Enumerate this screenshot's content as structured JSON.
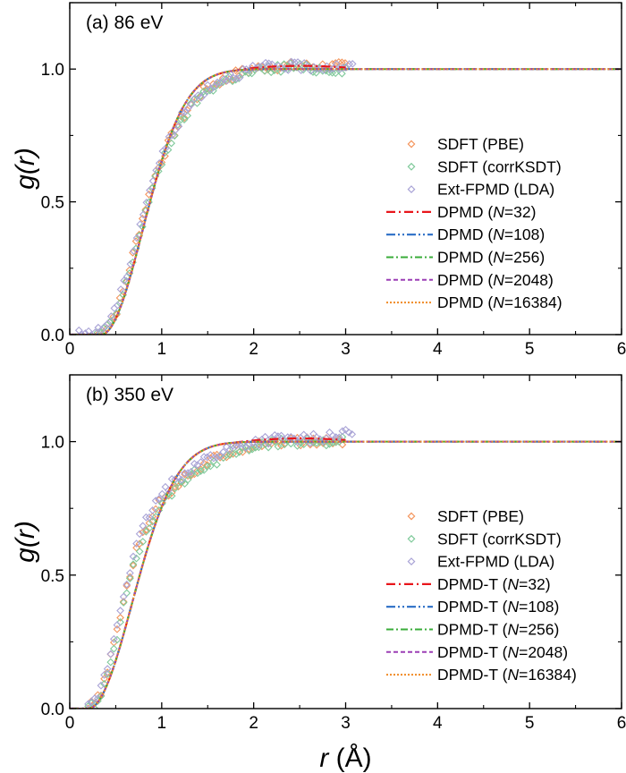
{
  "chart_data": [
    {
      "type": "line",
      "panel_label": "(a) 86 eV",
      "xlabel_base": "r",
      "xlabel_unit": "(Å)",
      "ylabel_func": "g(",
      "ylabel_var": "r",
      "ylabel_close": ")",
      "xlim": [
        0,
        6
      ],
      "ylim": [
        0,
        1.25
      ],
      "xticks": [
        0,
        1,
        2,
        3,
        4,
        5,
        6
      ],
      "yticks": [
        0.0,
        0.5,
        1.0
      ],
      "ytick_labels": [
        "0.0",
        "0.5",
        "1.0"
      ],
      "show_xlabel": false,
      "legend_position": "right",
      "onset_r": 0.34,
      "rise_width": 0.95,
      "scatter_series": [
        {
          "name": "SDFT (PBE)",
          "color": "#f4955c",
          "marker": "diamond",
          "x_max": 3.0,
          "points": [
            [
              0.3,
              0.0
            ],
            [
              0.4,
              0.03
            ],
            [
              0.5,
              0.08
            ],
            [
              0.6,
              0.18
            ],
            [
              0.7,
              0.32
            ],
            [
              0.8,
              0.45
            ],
            [
              0.9,
              0.57
            ],
            [
              1.0,
              0.66
            ],
            [
              1.1,
              0.74
            ],
            [
              1.2,
              0.8
            ],
            [
              1.3,
              0.86
            ],
            [
              1.4,
              0.9
            ],
            [
              1.5,
              0.93
            ],
            [
              1.6,
              0.95
            ],
            [
              1.7,
              0.96
            ],
            [
              1.8,
              0.98
            ],
            [
              1.9,
              0.99
            ],
            [
              2.0,
              1.0
            ],
            [
              2.2,
              1.01
            ],
            [
              2.4,
              1.01
            ],
            [
              2.6,
              1.01
            ],
            [
              2.8,
              1.01
            ],
            [
              3.0,
              1.01
            ]
          ]
        },
        {
          "name": "SDFT (corrKSDT)",
          "color": "#7fc99a",
          "marker": "diamond",
          "x_max": 3.0,
          "points": [
            [
              0.3,
              0.0
            ],
            [
              0.4,
              0.02
            ],
            [
              0.5,
              0.07
            ],
            [
              0.6,
              0.17
            ],
            [
              0.7,
              0.3
            ],
            [
              0.8,
              0.43
            ],
            [
              0.9,
              0.55
            ],
            [
              1.0,
              0.65
            ],
            [
              1.1,
              0.73
            ],
            [
              1.2,
              0.79
            ],
            [
              1.3,
              0.85
            ],
            [
              1.4,
              0.89
            ],
            [
              1.5,
              0.92
            ],
            [
              1.6,
              0.94
            ],
            [
              1.7,
              0.96
            ],
            [
              1.8,
              0.97
            ],
            [
              1.9,
              0.98
            ],
            [
              2.0,
              0.99
            ],
            [
              2.2,
              1.0
            ],
            [
              2.4,
              1.01
            ],
            [
              2.6,
              1.0
            ],
            [
              2.8,
              1.0
            ],
            [
              3.0,
              1.0
            ]
          ]
        },
        {
          "name": "Ext-FPMD (LDA)",
          "color": "#a9a3d6",
          "marker": "diamond",
          "x_max": 3.1,
          "points": [
            [
              0.1,
              0.0
            ],
            [
              0.2,
              0.01
            ],
            [
              0.3,
              0.01
            ],
            [
              0.4,
              0.04
            ],
            [
              0.5,
              0.1
            ],
            [
              0.6,
              0.2
            ],
            [
              0.7,
              0.33
            ],
            [
              0.8,
              0.46
            ],
            [
              0.9,
              0.58
            ],
            [
              1.0,
              0.67
            ],
            [
              1.1,
              0.75
            ],
            [
              1.2,
              0.81
            ],
            [
              1.3,
              0.86
            ],
            [
              1.4,
              0.9
            ],
            [
              1.5,
              0.93
            ],
            [
              1.6,
              0.95
            ],
            [
              1.7,
              0.97
            ],
            [
              1.8,
              0.98
            ],
            [
              1.9,
              0.99
            ],
            [
              2.0,
              1.0
            ],
            [
              2.2,
              1.01
            ],
            [
              2.4,
              1.01
            ],
            [
              2.6,
              1.01
            ],
            [
              2.8,
              1.01
            ],
            [
              3.0,
              1.01
            ]
          ]
        }
      ],
      "line_series": [
        {
          "name_prefix": "DPMD",
          "n": "32",
          "color": "#e8151b",
          "dash": "10,4,2,4",
          "width": 2.2,
          "x_max": 3.0
        },
        {
          "name_prefix": "DPMD",
          "n": "108",
          "color": "#2a6ec6",
          "dash": "10,3,2,3,2,3",
          "width": 2.2,
          "x_max": 6.0
        },
        {
          "name_prefix": "DPMD",
          "n": "256",
          "color": "#3aac3a",
          "dash": "8,3,2,3",
          "width": 2.0,
          "x_max": 6.0
        },
        {
          "name_prefix": "DPMD",
          "n": "2048",
          "color": "#9b3fb5",
          "dash": "5,3",
          "width": 2.0,
          "x_max": 6.0
        },
        {
          "name_prefix": "DPMD",
          "n": "16384",
          "color": "#f08a24",
          "dash": "2,2",
          "width": 2.0,
          "x_max": 6.0
        }
      ]
    },
    {
      "type": "line",
      "panel_label": "(b) 350 eV",
      "xlabel_base": "r",
      "xlabel_unit": "(Å)",
      "ylabel_func": "g(",
      "ylabel_var": "r",
      "ylabel_close": ")",
      "xlim": [
        0,
        6
      ],
      "ylim": [
        0,
        1.25
      ],
      "xticks": [
        0,
        1,
        2,
        3,
        4,
        5,
        6
      ],
      "yticks": [
        0.0,
        0.5,
        1.0
      ],
      "ytick_labels": [
        "0.0",
        "0.5",
        "1.0"
      ],
      "show_xlabel": true,
      "legend_position": "right",
      "onset_r": 0.2,
      "rise_width": 1.0,
      "scatter_series": [
        {
          "name": "SDFT (PBE)",
          "color": "#f4955c",
          "marker": "diamond",
          "x_max": 3.0,
          "points": [
            [
              0.2,
              0.0
            ],
            [
              0.3,
              0.03
            ],
            [
              0.4,
              0.12
            ],
            [
              0.5,
              0.27
            ],
            [
              0.6,
              0.43
            ],
            [
              0.7,
              0.56
            ],
            [
              0.8,
              0.66
            ],
            [
              0.9,
              0.73
            ],
            [
              1.0,
              0.78
            ],
            [
              1.1,
              0.82
            ],
            [
              1.2,
              0.85
            ],
            [
              1.3,
              0.88
            ],
            [
              1.4,
              0.9
            ],
            [
              1.5,
              0.92
            ],
            [
              1.6,
              0.94
            ],
            [
              1.7,
              0.95
            ],
            [
              1.8,
              0.97
            ],
            [
              1.9,
              0.98
            ],
            [
              2.0,
              0.99
            ],
            [
              2.2,
              1.0
            ],
            [
              2.4,
              1.0
            ],
            [
              2.6,
              1.0
            ],
            [
              2.8,
              1.0
            ],
            [
              3.0,
              1.0
            ]
          ]
        },
        {
          "name": "SDFT (corrKSDT)",
          "color": "#7fc99a",
          "marker": "diamond",
          "x_max": 3.0,
          "points": [
            [
              0.2,
              0.0
            ],
            [
              0.3,
              0.02
            ],
            [
              0.4,
              0.1
            ],
            [
              0.5,
              0.25
            ],
            [
              0.6,
              0.41
            ],
            [
              0.7,
              0.54
            ],
            [
              0.8,
              0.64
            ],
            [
              0.9,
              0.71
            ],
            [
              1.0,
              0.77
            ],
            [
              1.1,
              0.81
            ],
            [
              1.2,
              0.84
            ],
            [
              1.3,
              0.87
            ],
            [
              1.4,
              0.89
            ],
            [
              1.5,
              0.91
            ],
            [
              1.6,
              0.93
            ],
            [
              1.7,
              0.95
            ],
            [
              1.8,
              0.96
            ],
            [
              1.9,
              0.97
            ],
            [
              2.0,
              0.98
            ],
            [
              2.2,
              0.99
            ],
            [
              2.4,
              1.0
            ],
            [
              2.6,
              1.0
            ],
            [
              2.8,
              1.0
            ],
            [
              3.0,
              1.0
            ]
          ]
        },
        {
          "name": "Ext-FPMD (LDA)",
          "color": "#a9a3d6",
          "marker": "diamond",
          "x_max": 3.1,
          "points": [
            [
              0.2,
              0.0
            ],
            [
              0.3,
              0.04
            ],
            [
              0.4,
              0.14
            ],
            [
              0.5,
              0.29
            ],
            [
              0.6,
              0.45
            ],
            [
              0.7,
              0.58
            ],
            [
              0.8,
              0.68
            ],
            [
              0.9,
              0.75
            ],
            [
              1.0,
              0.8
            ],
            [
              1.1,
              0.84
            ],
            [
              1.2,
              0.87
            ],
            [
              1.3,
              0.9
            ],
            [
              1.4,
              0.92
            ],
            [
              1.5,
              0.94
            ],
            [
              1.6,
              0.95
            ],
            [
              1.7,
              0.97
            ],
            [
              1.8,
              0.98
            ],
            [
              1.9,
              0.99
            ],
            [
              2.0,
              1.0
            ],
            [
              2.2,
              1.01
            ],
            [
              2.4,
              1.01
            ],
            [
              2.6,
              1.01
            ],
            [
              2.8,
              1.02
            ],
            [
              3.0,
              1.03
            ]
          ]
        }
      ],
      "line_series": [
        {
          "name_prefix": "DPMD-T",
          "n": "32",
          "color": "#e8151b",
          "dash": "10,4,2,4",
          "width": 2.2,
          "x_max": 3.0
        },
        {
          "name_prefix": "DPMD-T",
          "n": "108",
          "color": "#2a6ec6",
          "dash": "10,3,2,3,2,3",
          "width": 2.2,
          "x_max": 6.0
        },
        {
          "name_prefix": "DPMD-T",
          "n": "256",
          "color": "#3aac3a",
          "dash": "8,3,2,3",
          "width": 2.0,
          "x_max": 6.0
        },
        {
          "name_prefix": "DPMD-T",
          "n": "2048",
          "color": "#9b3fb5",
          "dash": "5,3",
          "width": 2.0,
          "x_max": 6.0
        },
        {
          "name_prefix": "DPMD-T",
          "n": "16384",
          "color": "#f08a24",
          "dash": "2,2",
          "width": 2.0,
          "x_max": 6.0
        }
      ]
    }
  ]
}
